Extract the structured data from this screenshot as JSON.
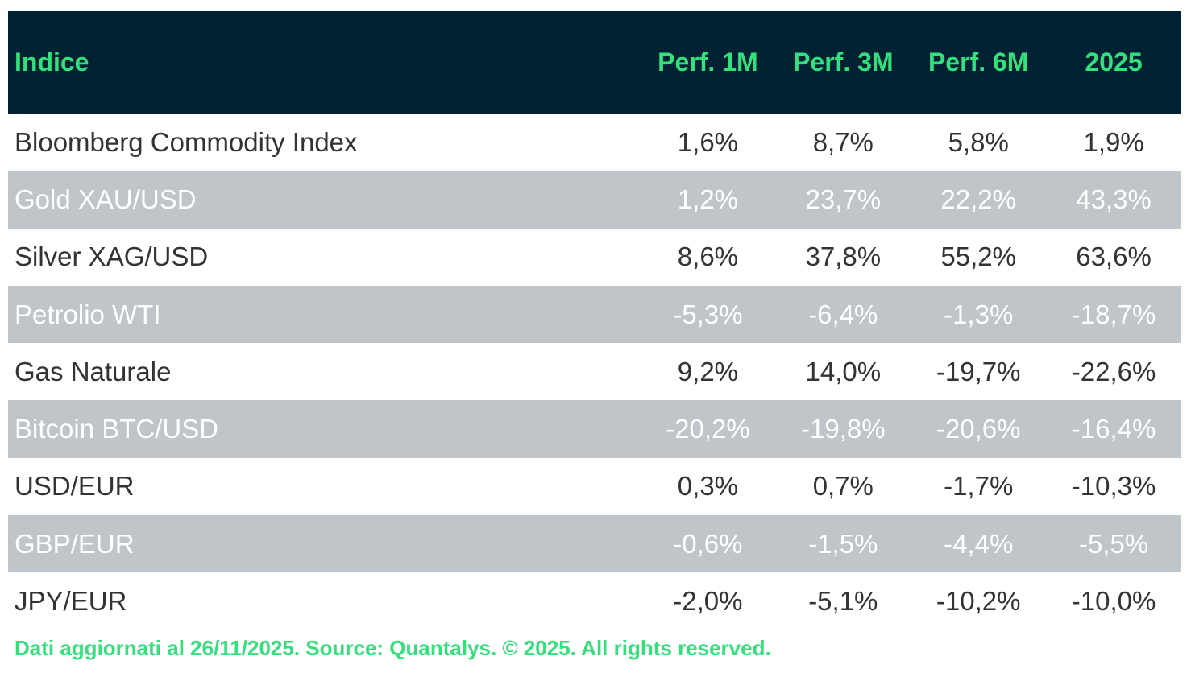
{
  "table": {
    "header": [
      "Indice",
      "Perf. 1M",
      "Perf. 3M",
      "Perf. 6M",
      "2025"
    ],
    "rows": [
      [
        "Bloomberg Commodity Index",
        "1,6%",
        "8,7%",
        "5,8%",
        "1,9%"
      ],
      [
        "Gold XAU/USD",
        "1,2%",
        "23,7%",
        "22,2%",
        "43,3%"
      ],
      [
        "Silver XAG/USD",
        "8,6%",
        "37,8%",
        "55,2%",
        "63,6%"
      ],
      [
        "Petrolio WTI",
        "-5,3%",
        "-6,4%",
        "-1,3%",
        "-18,7%"
      ],
      [
        "Gas Naturale",
        "9,2%",
        "14,0%",
        "-19,7%",
        "-22,6%"
      ],
      [
        "Bitcoin BTC/USD",
        "-20,2%",
        "-19,8%",
        "-20,6%",
        "-16,4%"
      ],
      [
        "USD/EUR",
        "0,3%",
        "0,7%",
        "-1,7%",
        "-10,3%"
      ],
      [
        "GBP/EUR",
        "-0,6%",
        "-1,5%",
        "-4,4%",
        "-5,5%"
      ],
      [
        "JPY/EUR",
        "-2,0%",
        "-5,1%",
        "-10,2%",
        "-10,0%"
      ]
    ]
  },
  "footer": "Dati aggiornati al 26/11/2025. Source: Quantalys. © 2025. All rights reserved."
}
